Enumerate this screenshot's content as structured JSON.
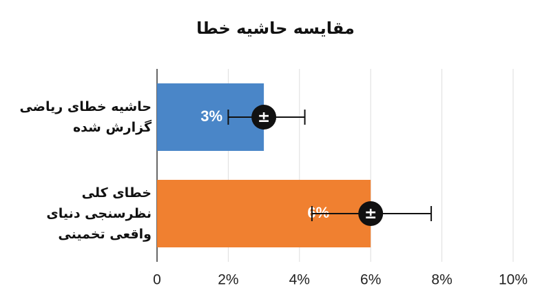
{
  "chart_data": {
    "type": "hbar_error",
    "title": "مقایسه حاشیه خطا",
    "categories": [
      "حاشیه خطای ریاضی گزارش شده",
      "خطای کلی نظرسنجی دنیای واقعی تخمینی"
    ],
    "values": [
      3,
      6
    ],
    "value_labels": [
      "3%",
      "6%"
    ],
    "error_minus": [
      1,
      1.65
    ],
    "error_plus": [
      1.15,
      1.7
    ],
    "error_symbol": "±",
    "colors": [
      "#4a86c8",
      "#f08030"
    ],
    "xlim": [
      0,
      10
    ],
    "xticks": [
      0,
      {
        "value": 2,
        "label": "2%"
      },
      {
        "value": 4,
        "label": "4%"
      },
      {
        "value": 6,
        "label": "6%"
      },
      {
        "value": 8,
        "label": "8%"
      },
      {
        "value": 10,
        "label": "10%"
      }
    ],
    "grid": true
  }
}
